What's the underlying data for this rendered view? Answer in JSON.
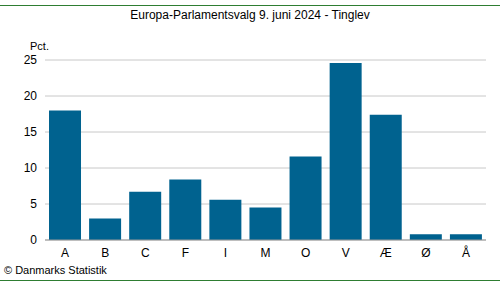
{
  "chart_data": {
    "type": "bar",
    "title": "Europa-Parlamentsvalg 9. juni 2024 - Tinglev",
    "y_label": "Pct.",
    "annotations": [
      "© Danmarks Statistik"
    ],
    "categories": [
      "A",
      "B",
      "C",
      "F",
      "I",
      "M",
      "O",
      "V",
      "Æ",
      "Ø",
      "Å"
    ],
    "values": [
      18.0,
      3.0,
      6.7,
      8.4,
      5.6,
      4.5,
      11.6,
      24.6,
      17.4,
      0.8,
      0.8
    ],
    "color": "#00628f",
    "ylim": [
      0,
      25
    ],
    "yticks": [
      0,
      5,
      10,
      15,
      20,
      25
    ],
    "grid": true
  }
}
